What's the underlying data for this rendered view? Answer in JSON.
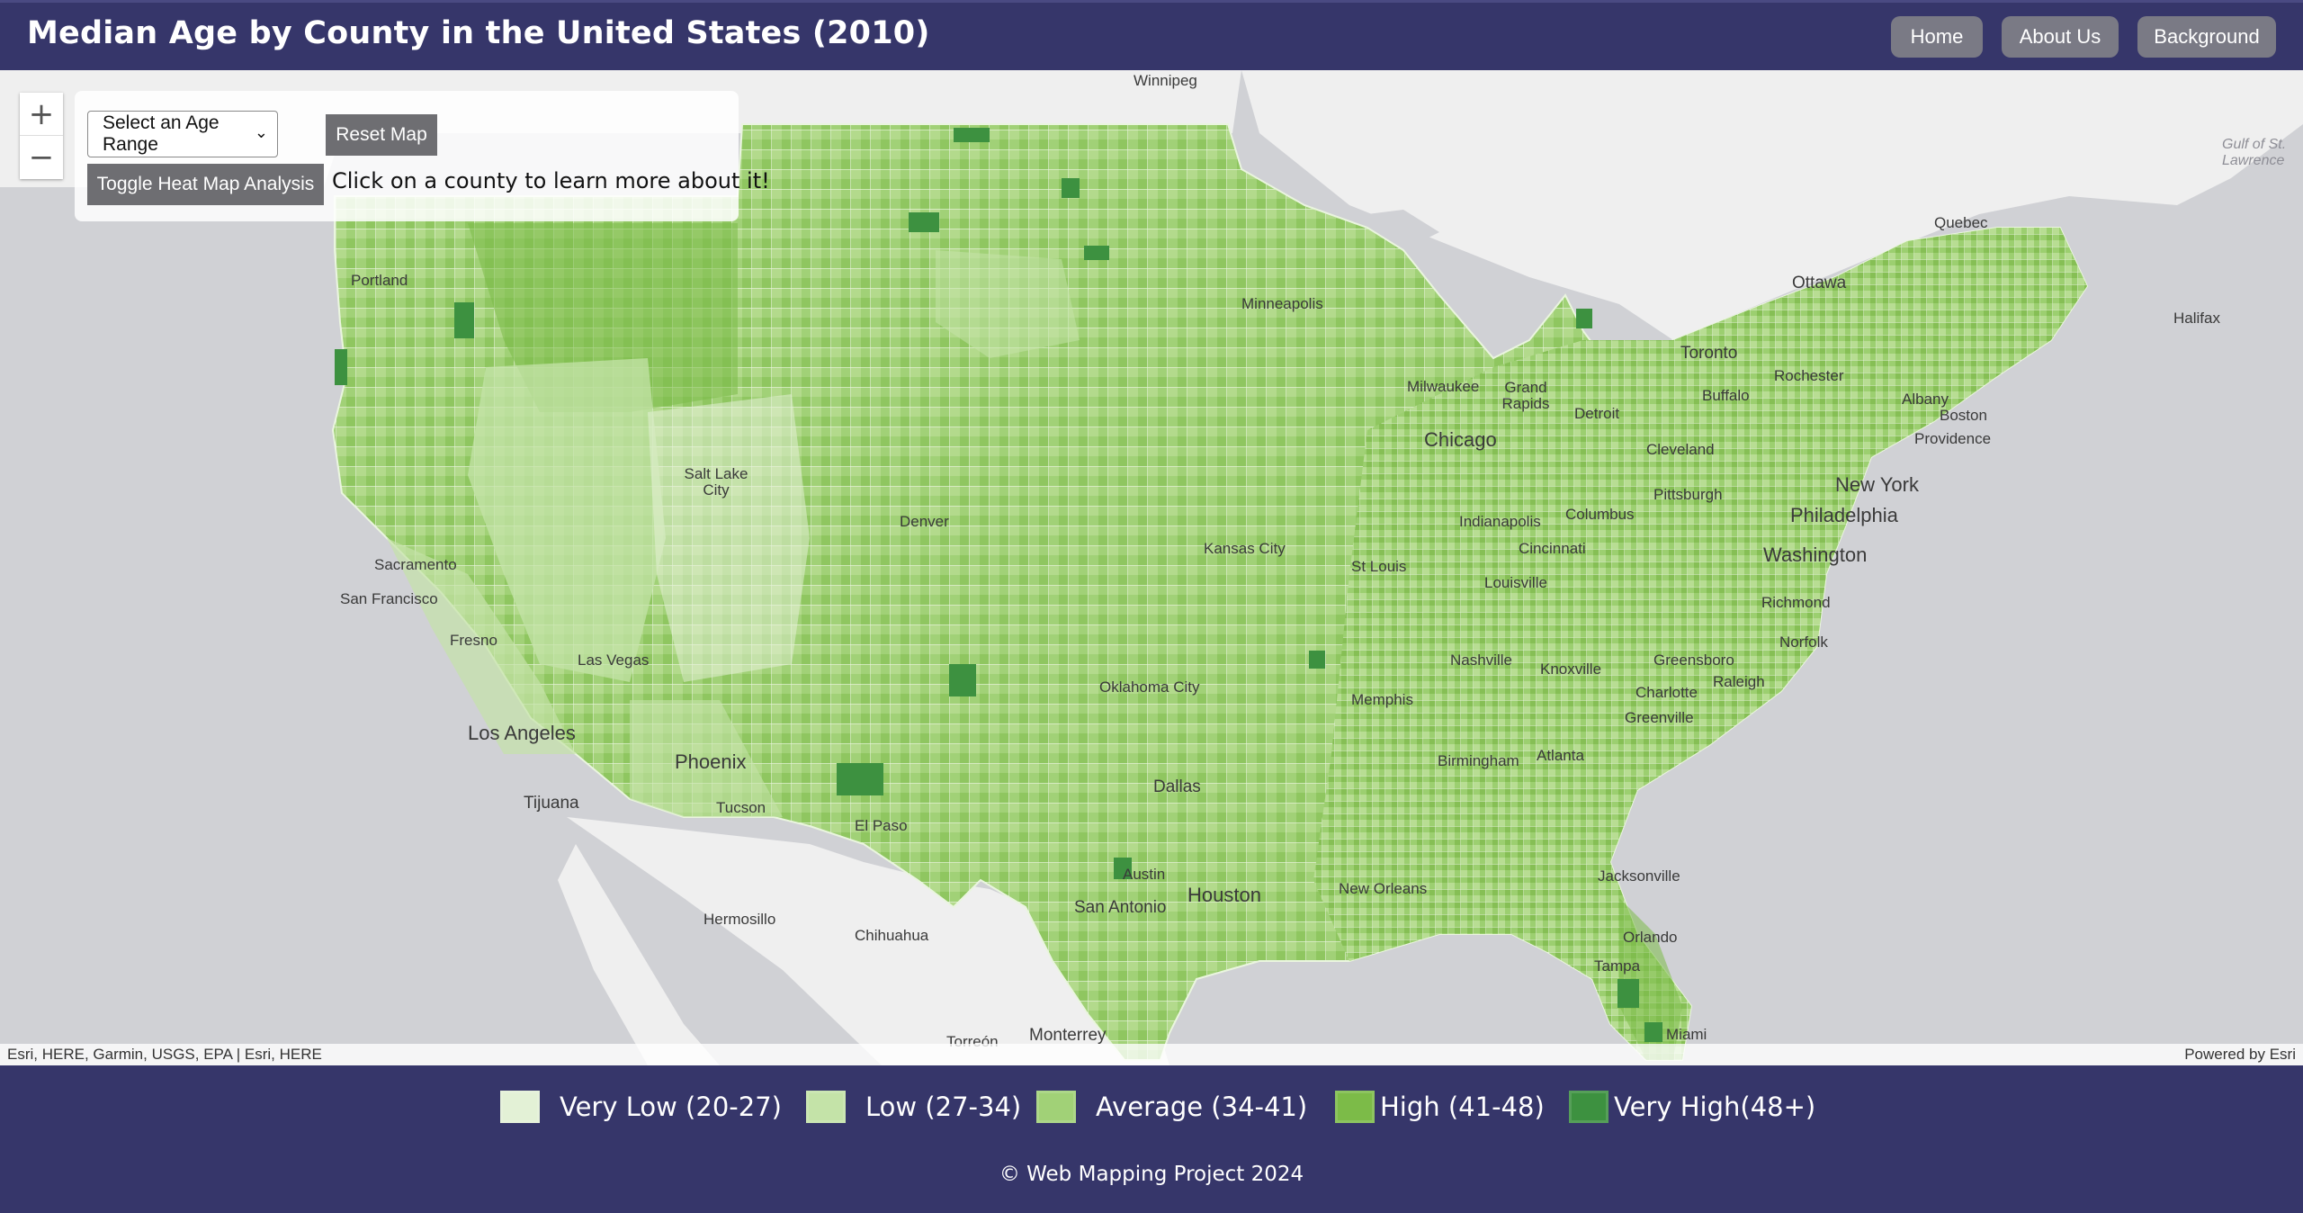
{
  "header": {
    "title": "Median Age by County in the United States (2010)",
    "nav": [
      "Home",
      "About Us",
      "Background"
    ]
  },
  "controls": {
    "select_value": "Select an Age Range",
    "reset_label": "Reset Map",
    "toggle_label": "Toggle Heat Map Analysis",
    "hint": "Click on a county to learn more about it!",
    "zoom_in": "+",
    "zoom_out": "−"
  },
  "map": {
    "cities": [
      "Winnipeg",
      "Portland",
      "Minneapolis",
      "Quebec",
      "Ottawa",
      "Halifax",
      "Toronto",
      "Rochester",
      "Buffalo",
      "Albany",
      "Boston",
      "Providence",
      "Milwaukee",
      "Grand Rapids",
      "Detroit",
      "Chicago",
      "Cleveland",
      "Pittsburgh",
      "New York",
      "Philadelphia",
      "Salt Lake City",
      "Denver",
      "Kansas City",
      "Indianapolis",
      "Columbus",
      "Cincinnati",
      "St Louis",
      "Louisville",
      "Washington",
      "Richmond",
      "Sacramento",
      "San Francisco",
      "Fresno",
      "Las Vegas",
      "Norfolk",
      "Nashville",
      "Knoxville",
      "Greensboro",
      "Raleigh",
      "Charlotte",
      "Oklahoma City",
      "Memphis",
      "Greenville",
      "Los Angeles",
      "Phoenix",
      "Birmingham",
      "Atlanta",
      "Tijuana",
      "Tucson",
      "El Paso",
      "Dallas",
      "Jacksonville",
      "Austin",
      "Houston",
      "New Orleans",
      "San Antonio",
      "Hermosillo",
      "Chihuahua",
      "Orlando",
      "Tampa",
      "Monterrey",
      "Torreón",
      "Miami",
      "Gulf of St. Lawrence"
    ],
    "attribution_left": "Esri, HERE, Garmin, USGS, EPA | Esri, HERE",
    "attribution_right": "Powered by Esri"
  },
  "legend": {
    "items": [
      {
        "label": "Very Low (20-27)",
        "color": "#e3f1d6"
      },
      {
        "label": "Low (27-34)",
        "color": "#c4e3a8"
      },
      {
        "label": "Average (34-41)",
        "color": "#a1d177"
      },
      {
        "label": "High (41-48)",
        "color": "#7cbb48"
      },
      {
        "label": "Very High(48+)",
        "color": "#3d9140"
      }
    ]
  },
  "footer": {
    "text": "© Web Mapping Project 2024"
  },
  "colors": {
    "header_bg": "#36366a",
    "map_land": "#efefef",
    "map_water": "#d0d1d5",
    "button_gray": "#7a7a85"
  }
}
